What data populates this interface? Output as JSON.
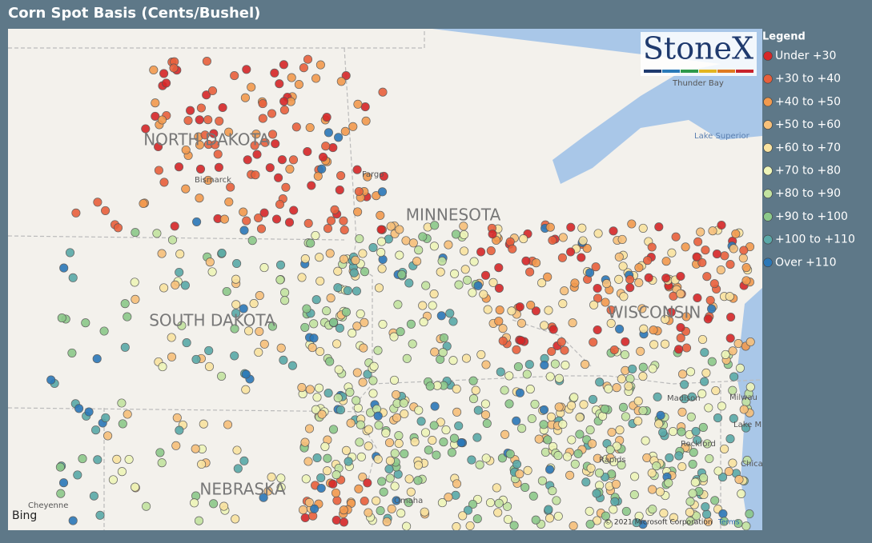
{
  "header": {
    "title": "Corn Spot Basis (Cents/Bushel)"
  },
  "logo": {
    "text": "StoneX",
    "colors": [
      "#1f3a6e",
      "#2a7ab8",
      "#2e9a4a",
      "#e3b520",
      "#e07a1f",
      "#c8232c"
    ]
  },
  "legend": {
    "title": "Legend",
    "items": [
      {
        "label": "Under +30",
        "color": "#d62728"
      },
      {
        "label": "+30 to +40",
        "color": "#e8603c"
      },
      {
        "label": "+40 to +50",
        "color": "#f29a4e"
      },
      {
        "label": "+50 to +60",
        "color": "#f7c07a"
      },
      {
        "label": "+60 to +70",
        "color": "#f9e3a0"
      },
      {
        "label": "+70 to +80",
        "color": "#eef5b8"
      },
      {
        "label": "+80 to +90",
        "color": "#c3e3a0"
      },
      {
        "label": "+90 to +100",
        "color": "#8cc98a"
      },
      {
        "label": "+100 to +110",
        "color": "#5aa9a8"
      },
      {
        "label": "Over +110",
        "color": "#2b78b8"
      }
    ]
  },
  "map": {
    "states": [
      "NORTH DAKOTA",
      "MINNESOTA",
      "SOUTH DAKOTA",
      "WISCONSIN",
      "NEBRASKA"
    ],
    "places": [
      "Bismarck",
      "Fargo",
      "Thunder Bay",
      "Lake Superior",
      "Madison",
      "Milwau",
      "Rockford",
      "Chica",
      "Lake M",
      "Cheyenne",
      "Omaha",
      "Rapids"
    ],
    "provider": "Bing",
    "attribution": "© 2021 Microsoft Corporation",
    "terms": "Terms"
  }
}
